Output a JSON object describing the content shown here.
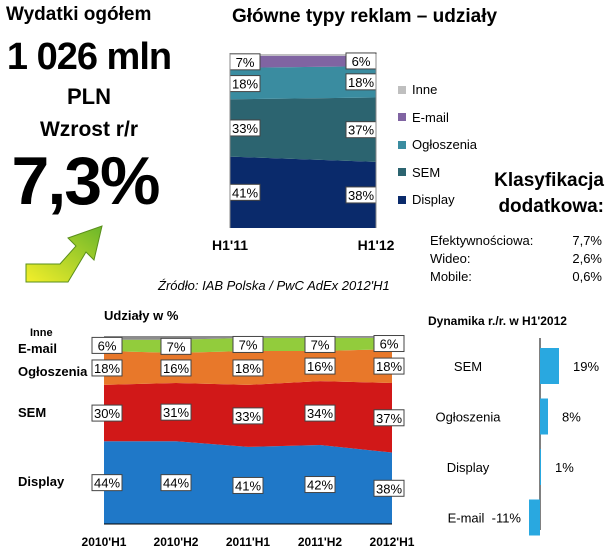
{
  "headline": {
    "title": "Wydatki ogółem",
    "amount": "1 026 mln",
    "unit": "PLN",
    "growth_label": "Wzrost r/r",
    "growth_value": "7,3%"
  },
  "source": "Źródło: IAB Polska / PwC AdEx 2012'H1",
  "additional": {
    "title_line1": "Klasyfikacja",
    "title_line2": "dodatkowa:",
    "rows": [
      {
        "label": "Efektywnościowa:",
        "value": "7,7%"
      },
      {
        "label": "Wideo:",
        "value": "2,6%"
      },
      {
        "label": "Mobile:",
        "value": "0,6%"
      }
    ]
  },
  "chart_data": [
    {
      "type": "area",
      "stacked": true,
      "title": "Główne typy reklam – udziały",
      "categories": [
        "H1'11",
        "H1'12"
      ],
      "ylim": [
        0,
        100
      ],
      "legend_position": "right",
      "series": [
        {
          "name": "Display",
          "values": [
            41,
            38
          ],
          "labels": [
            "41%",
            "38%"
          ],
          "color": "#0a2a6b"
        },
        {
          "name": "SEM",
          "values": [
            33,
            37
          ],
          "labels": [
            "33%",
            "37%"
          ],
          "color": "#2c6470"
        },
        {
          "name": "Ogłoszenia",
          "values": [
            18,
            18
          ],
          "labels": [
            "18%",
            "18%"
          ],
          "color": "#3a8ca0"
        },
        {
          "name": "E-mail",
          "values": [
            7,
            6
          ],
          "labels": [
            "7%",
            "6%"
          ],
          "color": "#8064a2"
        },
        {
          "name": "Inne",
          "values": [
            1,
            1
          ],
          "labels": [
            "",
            ""
          ],
          "color": "#bfbfbf"
        }
      ],
      "legend_order": [
        "Inne",
        "E-mail",
        "Ogłoszenia",
        "SEM",
        "Display"
      ]
    },
    {
      "type": "area",
      "stacked": true,
      "title": "Udziały w %",
      "categories": [
        "2010'H1",
        "2010'H2",
        "2011'H1",
        "2011'H2",
        "2012'H1"
      ],
      "ylim": [
        0,
        100
      ],
      "series": [
        {
          "name": "Display",
          "values": [
            44,
            44,
            41,
            42,
            38
          ],
          "labels": [
            "44%",
            "44%",
            "41%",
            "42%",
            "38%"
          ],
          "color": "#1f78c8"
        },
        {
          "name": "SEM",
          "values": [
            30,
            31,
            33,
            34,
            37
          ],
          "labels": [
            "30%",
            "31%",
            "33%",
            "34%",
            "37%"
          ],
          "color": "#d11818"
        },
        {
          "name": "Ogłoszenia",
          "values": [
            18,
            16,
            18,
            16,
            18
          ],
          "labels": [
            "18%",
            "16%",
            "18%",
            "16%",
            "18%"
          ],
          "color": "#e8782a"
        },
        {
          "name": "E-mail",
          "values": [
            6,
            7,
            7,
            7,
            6
          ],
          "labels": [
            "6%",
            "7%",
            "7%",
            "7%",
            "6%"
          ],
          "color": "#92cc3c"
        },
        {
          "name": "Inne",
          "values": [
            2,
            2,
            1,
            1,
            1
          ],
          "labels": [
            "",
            "",
            "",
            "",
            ""
          ],
          "color": "#8c8c8c"
        }
      ]
    },
    {
      "type": "bar",
      "orientation": "horizontal",
      "title": "Dynamika r./r. w H1'2012",
      "categories": [
        "SEM",
        "Ogłoszenia",
        "Display",
        "E-mail"
      ],
      "values": [
        19,
        8,
        1,
        -11
      ],
      "value_labels": [
        "19%",
        "8%",
        "1%",
        "-11%"
      ],
      "color": "#29a8e0"
    }
  ]
}
